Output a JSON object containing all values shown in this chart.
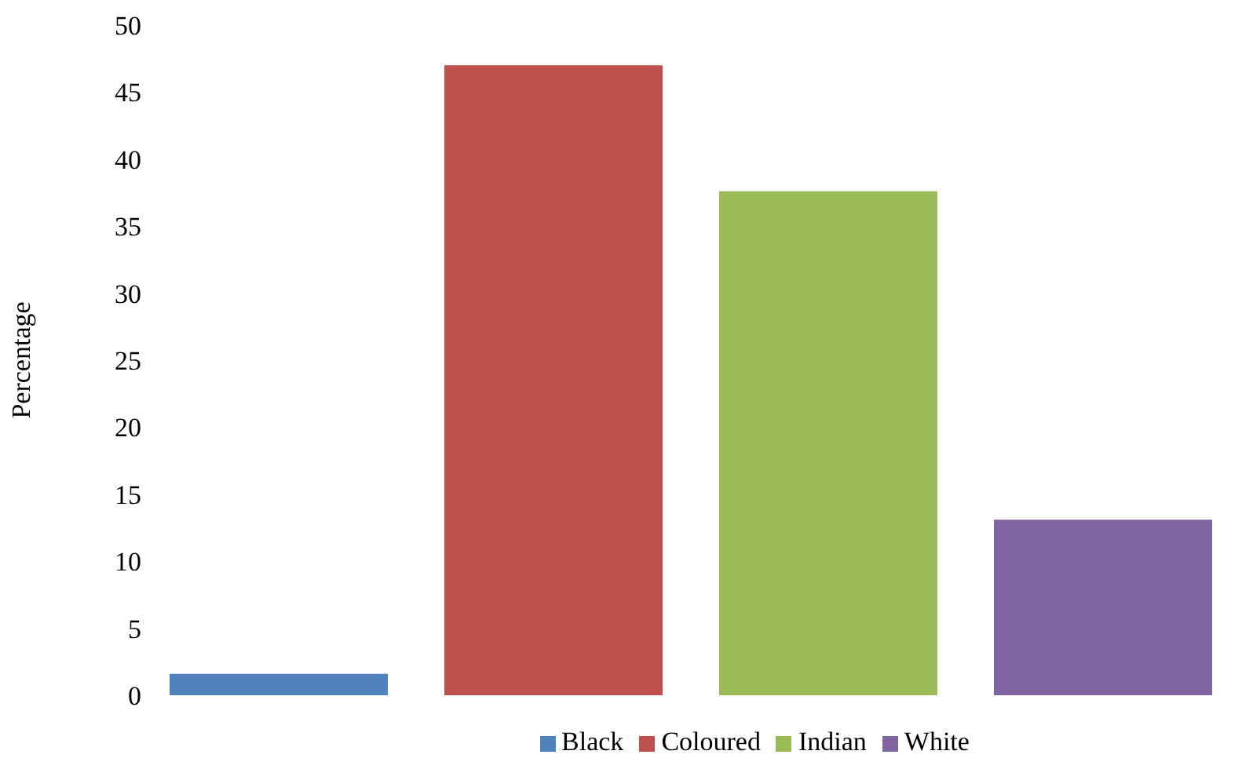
{
  "chart_data": {
    "type": "bar",
    "ylabel": "Percentage",
    "categories": [
      null
    ],
    "series": [
      {
        "name": "Black",
        "color": "#4f81bd",
        "values": [
          1.6
        ]
      },
      {
        "name": "Coloured",
        "color": "#c0504d",
        "values": [
          47
        ]
      },
      {
        "name": "Indian",
        "color": "#9bbb59",
        "values": [
          37.6
        ]
      },
      {
        "name": "White",
        "color": "#8064a2",
        "values": [
          13.1
        ]
      }
    ],
    "ylim": [
      0,
      50
    ],
    "yticks": [
      0,
      5,
      10,
      15,
      20,
      25,
      30,
      35,
      40,
      45,
      50
    ],
    "grid": false,
    "legend": "bottom"
  }
}
